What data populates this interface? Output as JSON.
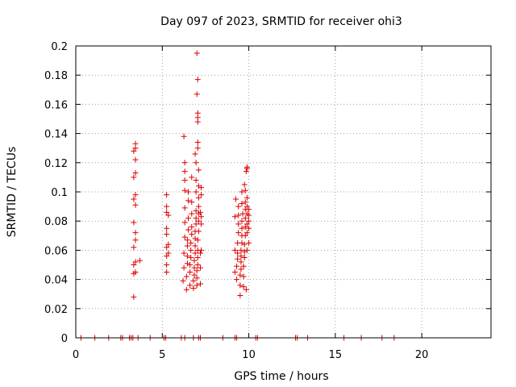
{
  "chart_data": {
    "type": "scatter",
    "title": "Day 097 of 2023, SRMTID for receiver ohi3",
    "xlabel": "GPS time / hours",
    "ylabel": "SRMTID / TECUs",
    "xlim": [
      0,
      24
    ],
    "ylim": [
      0,
      0.2
    ],
    "xticks": [
      0,
      5,
      10,
      15,
      20
    ],
    "xtick_labels": [
      "0",
      "5",
      "10",
      "15",
      "20"
    ],
    "yticks": [
      0,
      0.02,
      0.04,
      0.06,
      0.08,
      0.1,
      0.12,
      0.14,
      0.16,
      0.18,
      0.2
    ],
    "ytick_labels": [
      "0",
      "0.02",
      "0.04",
      "0.06",
      "0.08",
      "0.1",
      "0.12",
      "0.14",
      "0.16",
      "0.18",
      "0.2"
    ],
    "grid": true,
    "marker": "+",
    "color": "#dd0000",
    "series": [
      {
        "name": "SRMTID",
        "points": [
          [
            3.35,
            0.028
          ],
          [
            3.35,
            0.044
          ],
          [
            3.35,
            0.05
          ],
          [
            3.35,
            0.062
          ],
          [
            3.35,
            0.079
          ],
          [
            3.35,
            0.095
          ],
          [
            3.35,
            0.11
          ],
          [
            3.35,
            0.128
          ],
          [
            3.45,
            0.045
          ],
          [
            3.45,
            0.052
          ],
          [
            3.45,
            0.067
          ],
          [
            3.45,
            0.072
          ],
          [
            3.45,
            0.091
          ],
          [
            3.45,
            0.098
          ],
          [
            3.45,
            0.113
          ],
          [
            3.45,
            0.122
          ],
          [
            3.45,
            0.13
          ],
          [
            3.45,
            0.133
          ],
          [
            3.7,
            0.053
          ],
          [
            5.25,
            0.045
          ],
          [
            5.25,
            0.05
          ],
          [
            5.25,
            0.056
          ],
          [
            5.25,
            0.062
          ],
          [
            5.25,
            0.071
          ],
          [
            5.25,
            0.075
          ],
          [
            5.25,
            0.086
          ],
          [
            5.25,
            0.09
          ],
          [
            5.25,
            0.098
          ],
          [
            5.35,
            0.058
          ],
          [
            5.35,
            0.064
          ],
          [
            5.35,
            0.084
          ],
          [
            6.2,
            0.039
          ],
          [
            6.25,
            0.048
          ],
          [
            6.25,
            0.058
          ],
          [
            6.3,
            0.069
          ],
          [
            6.3,
            0.079
          ],
          [
            6.3,
            0.089
          ],
          [
            6.3,
            0.101
          ],
          [
            6.3,
            0.108
          ],
          [
            6.3,
            0.114
          ],
          [
            6.3,
            0.12
          ],
          [
            6.25,
            0.138
          ],
          [
            6.4,
            0.033
          ],
          [
            6.4,
            0.042
          ],
          [
            6.45,
            0.051
          ],
          [
            6.45,
            0.056
          ],
          [
            6.45,
            0.063
          ],
          [
            6.45,
            0.067
          ],
          [
            6.5,
            0.074
          ],
          [
            6.5,
            0.082
          ],
          [
            6.5,
            0.094
          ],
          [
            6.5,
            0.1
          ],
          [
            6.6,
            0.036
          ],
          [
            6.6,
            0.045
          ],
          [
            6.6,
            0.05
          ],
          [
            6.65,
            0.055
          ],
          [
            6.65,
            0.06
          ],
          [
            6.65,
            0.065
          ],
          [
            6.7,
            0.071
          ],
          [
            6.7,
            0.076
          ],
          [
            6.7,
            0.085
          ],
          [
            6.7,
            0.093
          ],
          [
            6.7,
            0.11
          ],
          [
            6.8,
            0.034
          ],
          [
            6.8,
            0.039
          ],
          [
            6.85,
            0.043
          ],
          [
            6.85,
            0.048
          ],
          [
            6.85,
            0.053
          ],
          [
            6.9,
            0.058
          ],
          [
            6.9,
            0.063
          ],
          [
            6.9,
            0.068
          ],
          [
            6.9,
            0.073
          ],
          [
            6.95,
            0.078
          ],
          [
            6.95,
            0.082
          ],
          [
            6.95,
            0.087
          ],
          [
            6.95,
            0.1
          ],
          [
            6.95,
            0.108
          ],
          [
            6.95,
            0.12
          ],
          [
            6.9,
            0.126
          ],
          [
            7.0,
            0.036
          ],
          [
            7.0,
            0.041
          ],
          [
            7.0,
            0.046
          ],
          [
            7.05,
            0.05
          ],
          [
            7.05,
            0.055
          ],
          [
            7.05,
            0.06
          ],
          [
            7.05,
            0.067
          ],
          [
            7.1,
            0.073
          ],
          [
            7.1,
            0.08
          ],
          [
            7.1,
            0.085
          ],
          [
            7.1,
            0.09
          ],
          [
            7.1,
            0.096
          ],
          [
            7.1,
            0.104
          ],
          [
            7.1,
            0.115
          ],
          [
            7.05,
            0.13
          ],
          [
            7.05,
            0.134
          ],
          [
            7.05,
            0.148
          ],
          [
            7.05,
            0.151
          ],
          [
            7.05,
            0.154
          ],
          [
            7.0,
            0.167
          ],
          [
            7.05,
            0.177
          ],
          [
            7.0,
            0.195
          ],
          [
            7.2,
            0.037
          ],
          [
            7.2,
            0.048
          ],
          [
            7.2,
            0.058
          ],
          [
            7.25,
            0.06
          ],
          [
            7.25,
            0.078
          ],
          [
            7.25,
            0.083
          ],
          [
            7.2,
            0.086
          ],
          [
            7.25,
            0.098
          ],
          [
            7.25,
            0.103
          ],
          [
            9.2,
            0.045
          ],
          [
            9.2,
            0.06
          ],
          [
            9.2,
            0.083
          ],
          [
            9.25,
            0.095
          ],
          [
            9.3,
            0.04
          ],
          [
            9.3,
            0.049
          ],
          [
            9.35,
            0.054
          ],
          [
            9.35,
            0.058
          ],
          [
            9.35,
            0.065
          ],
          [
            9.4,
            0.072
          ],
          [
            9.4,
            0.078
          ],
          [
            9.4,
            0.084
          ],
          [
            9.4,
            0.09
          ],
          [
            9.5,
            0.029
          ],
          [
            9.5,
            0.036
          ],
          [
            9.5,
            0.043
          ],
          [
            9.55,
            0.047
          ],
          [
            9.55,
            0.052
          ],
          [
            9.55,
            0.056
          ],
          [
            9.55,
            0.06
          ],
          [
            9.6,
            0.065
          ],
          [
            9.6,
            0.07
          ],
          [
            9.6,
            0.075
          ],
          [
            9.6,
            0.08
          ],
          [
            9.65,
            0.085
          ],
          [
            9.6,
            0.092
          ],
          [
            9.6,
            0.1
          ],
          [
            9.7,
            0.035
          ],
          [
            9.7,
            0.042
          ],
          [
            9.7,
            0.049
          ],
          [
            9.75,
            0.055
          ],
          [
            9.75,
            0.059
          ],
          [
            9.75,
            0.064
          ],
          [
            9.8,
            0.07
          ],
          [
            9.8,
            0.076
          ],
          [
            9.8,
            0.082
          ],
          [
            9.8,
            0.088
          ],
          [
            9.8,
            0.093
          ],
          [
            9.8,
            0.101
          ],
          [
            9.75,
            0.105
          ],
          [
            9.85,
            0.033
          ],
          [
            9.9,
            0.06
          ],
          [
            9.9,
            0.072
          ],
          [
            9.9,
            0.078
          ],
          [
            9.9,
            0.085
          ],
          [
            9.9,
            0.09
          ],
          [
            9.9,
            0.096
          ],
          [
            9.85,
            0.114
          ],
          [
            9.9,
            0.116
          ],
          [
            9.9,
            0.117
          ],
          [
            10.0,
            0.065
          ],
          [
            10.0,
            0.075
          ],
          [
            10.0,
            0.08
          ],
          [
            10.0,
            0.084
          ],
          [
            10.0,
            0.088
          ],
          [
            0.3,
            0
          ],
          [
            1.1,
            0
          ],
          [
            1.9,
            0
          ],
          [
            2.6,
            0
          ],
          [
            2.7,
            0
          ],
          [
            3.1,
            0
          ],
          [
            3.2,
            0
          ],
          [
            3.3,
            0
          ],
          [
            3.6,
            0
          ],
          [
            4.3,
            0
          ],
          [
            5.1,
            0
          ],
          [
            5.2,
            0
          ],
          [
            6.1,
            0
          ],
          [
            6.3,
            0
          ],
          [
            6.8,
            0
          ],
          [
            7.1,
            0
          ],
          [
            7.2,
            0
          ],
          [
            8.5,
            0
          ],
          [
            9.2,
            0
          ],
          [
            9.3,
            0
          ],
          [
            10.4,
            0
          ],
          [
            10.5,
            0
          ],
          [
            12.7,
            0
          ],
          [
            12.8,
            0
          ],
          [
            13.4,
            0
          ],
          [
            15.5,
            0
          ],
          [
            16.5,
            0
          ],
          [
            17.7,
            0
          ],
          [
            18.4,
            0
          ]
        ]
      }
    ]
  }
}
